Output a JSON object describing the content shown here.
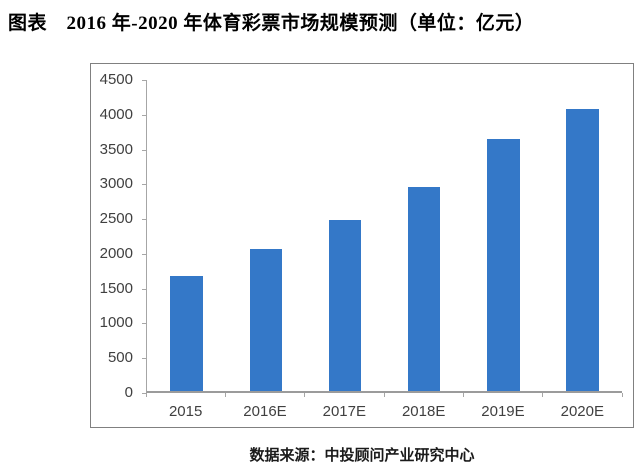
{
  "title": {
    "text": "图表　2016 年-2020 年体育彩票市场规模预测（单位：亿元）"
  },
  "source": {
    "text": "数据来源：中投顾问产业研究中心"
  },
  "colors": {
    "bar": "#3478C8",
    "axis": "#A6A6A6",
    "tick_label": "#404040",
    "frame_border": "#808080",
    "title_text": "#000000",
    "source_text": "#1A1A1A",
    "background": "#FFFFFF"
  },
  "chart_data": {
    "type": "bar",
    "title": "图表　2016 年-2020 年体育彩票市场规模预测（单位：亿元）",
    "unit": "亿元",
    "categories": [
      "2015",
      "2016E",
      "2017E",
      "2018E",
      "2019E",
      "2020E"
    ],
    "values": [
      1660,
      2050,
      2480,
      2950,
      3640,
      4080
    ],
    "xlabel": "",
    "ylabel": "",
    "ylim": [
      0,
      4500
    ],
    "yticks": [
      0,
      500,
      1000,
      1500,
      2000,
      2500,
      3000,
      3500,
      4000,
      4500
    ],
    "grid": false,
    "legend": false,
    "bar_color": "#3478C8",
    "source_note": "数据来源：中投顾问产业研究中心"
  }
}
